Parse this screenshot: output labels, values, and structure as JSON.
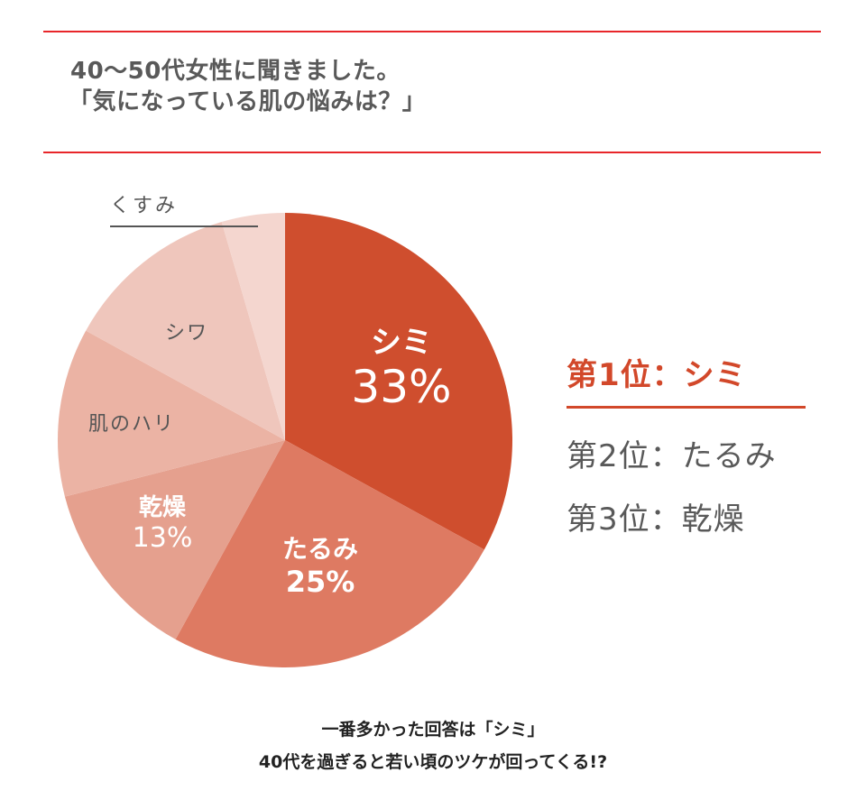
{
  "header": {
    "title_line1": "40～50代女性に聞きました。",
    "title_line2": "「気になっている肌の悩みは？」",
    "rule_color": "#e8262a"
  },
  "chart_data": {
    "type": "pie",
    "title": "40～50代女性に聞きました。「気になっている肌の悩みは？」",
    "start_angle": "12 o'clock, clockwise",
    "slices": [
      {
        "label": "シミ",
        "value": 33,
        "value_label": "33%",
        "color": "#cf4e2e",
        "shown_pct": true
      },
      {
        "label": "たるみ",
        "value": 25,
        "value_label": "25%",
        "color": "#de7a62",
        "shown_pct": true
      },
      {
        "label": "乾燥",
        "value": 13,
        "value_label": "13%",
        "color": "#e5a08e",
        "shown_pct": true
      },
      {
        "label": "肌のハリ",
        "value": 12,
        "value_label": "",
        "color": "#ebb3a4",
        "shown_pct": false
      },
      {
        "label": "シワ",
        "value": 12.5,
        "value_label": "",
        "color": "#efc6bc",
        "shown_pct": false
      },
      {
        "label": "くすみ",
        "value": 4.5,
        "value_label": "",
        "color": "#f4d6cf",
        "shown_pct": false
      }
    ],
    "legend": "none (labels inside slices; くすみ with leader line)"
  },
  "ranking": {
    "first": "第1位：シミ",
    "second": "第2位：たるみ",
    "third": "第3位：乾燥",
    "accent_color": "#d2482a"
  },
  "footer": {
    "line1": "一番多かった回答は「シミ」",
    "line2": "40代を過ぎると若い頃のツケが回ってくる!?"
  }
}
